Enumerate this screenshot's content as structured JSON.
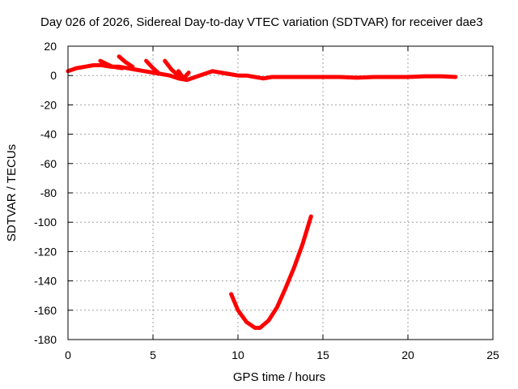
{
  "chart_data": {
    "type": "line",
    "title": "Day 026 of 2026, Sidereal Day-to-day VTEC variation (SDTVAR) for receiver dae3",
    "xlabel": "GPS time / hours",
    "ylabel": "SDTVAR / TECUs",
    "xlim": [
      0,
      25
    ],
    "ylim": [
      -180,
      20
    ],
    "xticks": [
      0,
      5,
      10,
      15,
      20,
      25
    ],
    "yticks": [
      20,
      0,
      -20,
      -40,
      -60,
      -80,
      -100,
      -120,
      -140,
      -160,
      -180
    ],
    "grid": true,
    "legend": "none",
    "series_color": "#ff0000",
    "series": [
      {
        "name": "main",
        "points": [
          [
            0.0,
            3
          ],
          [
            0.5,
            5
          ],
          [
            1.0,
            6
          ],
          [
            1.5,
            7
          ],
          [
            2.0,
            7
          ],
          [
            2.5,
            6
          ],
          [
            3.0,
            6
          ],
          [
            3.5,
            5
          ],
          [
            4.0,
            4
          ],
          [
            4.5,
            3
          ],
          [
            5.0,
            2
          ],
          [
            5.5,
            1
          ],
          [
            6.0,
            0
          ],
          [
            6.5,
            -2
          ],
          [
            7.0,
            -3
          ],
          [
            7.5,
            -1
          ],
          [
            8.0,
            1
          ],
          [
            8.5,
            3
          ],
          [
            9.0,
            2
          ],
          [
            9.5,
            1
          ],
          [
            10.0,
            0
          ],
          [
            10.5,
            0
          ],
          [
            11.0,
            -1
          ],
          [
            11.5,
            -2
          ],
          [
            12.0,
            -1
          ],
          [
            13.0,
            -1
          ],
          [
            14.0,
            -1
          ],
          [
            15.0,
            -1
          ],
          [
            16.0,
            -1
          ],
          [
            17.0,
            -1.5
          ],
          [
            18.0,
            -1
          ],
          [
            19.0,
            -1
          ],
          [
            20.0,
            -1
          ],
          [
            21.0,
            -0.5
          ],
          [
            22.0,
            -0.5
          ],
          [
            22.8,
            -1
          ]
        ]
      },
      {
        "name": "spike-1",
        "points": [
          [
            1.9,
            10
          ],
          [
            2.6,
            6
          ],
          [
            3.2,
            5
          ]
        ]
      },
      {
        "name": "spike-2",
        "points": [
          [
            3.0,
            13
          ],
          [
            3.4,
            9
          ],
          [
            3.8,
            6
          ]
        ]
      },
      {
        "name": "spike-3",
        "points": [
          [
            4.6,
            10
          ],
          [
            5.0,
            5
          ],
          [
            5.3,
            2
          ]
        ]
      },
      {
        "name": "spike-4",
        "points": [
          [
            5.7,
            10
          ],
          [
            6.1,
            4
          ],
          [
            6.5,
            0
          ]
        ]
      },
      {
        "name": "spike-5",
        "points": [
          [
            6.5,
            3
          ],
          [
            6.8,
            -2
          ],
          [
            7.1,
            2
          ]
        ]
      },
      {
        "name": "arc",
        "points": [
          [
            9.6,
            -149
          ],
          [
            10.0,
            -160
          ],
          [
            10.5,
            -168
          ],
          [
            11.0,
            -172
          ],
          [
            11.3,
            -172
          ],
          [
            11.8,
            -167
          ],
          [
            12.3,
            -158
          ],
          [
            12.8,
            -145
          ],
          [
            13.3,
            -131
          ],
          [
            13.8,
            -115
          ],
          [
            14.3,
            -96
          ]
        ]
      }
    ]
  }
}
